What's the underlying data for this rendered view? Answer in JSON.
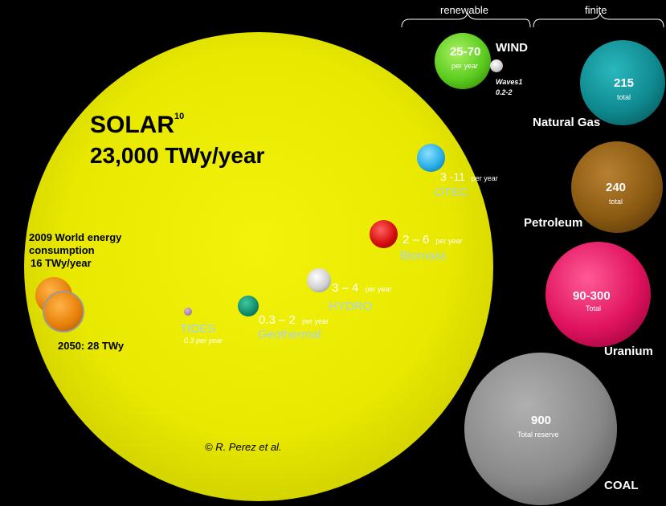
{
  "headers": {
    "renewable": "renewable",
    "finite": "finite"
  },
  "solar": {
    "name": "SOLAR",
    "superscript": "10",
    "value": "23,000 TWy/year",
    "credit": "© R. Perez et al."
  },
  "world_energy": {
    "line1": "2009 World energy",
    "line2": "consumption",
    "line3": "16 TWy/year",
    "future": "2050:  28 TWy"
  },
  "renewables": {
    "wind": {
      "value": "25-70",
      "unit": "per year",
      "name": "WIND"
    },
    "waves": {
      "name": "Waves1",
      "value": "0.2-2"
    },
    "otec": {
      "value": "3 -11",
      "unit": "per year",
      "name": "OTEC"
    },
    "biomass": {
      "value": "2 – 6",
      "unit": "per year",
      "name": "Biomass"
    },
    "hydro": {
      "value": "3 – 4",
      "unit": "per year",
      "name": "HYDRO"
    },
    "geothermal": {
      "value": "0.3 – 2",
      "unit": "per year",
      "name": "Geothermal"
    },
    "tides": {
      "name": "TIDES",
      "value": "0.3 per year"
    }
  },
  "finite": {
    "natural_gas": {
      "value": "215",
      "unit": "total",
      "name": "Natural Gas"
    },
    "petroleum": {
      "value": "240",
      "unit": "total",
      "name": "Petroleum"
    },
    "uranium": {
      "value": "90-300",
      "unit": "Total",
      "name": "Uranium"
    },
    "coal": {
      "value": "900",
      "unit": "Total reserve",
      "name": "COAL"
    }
  },
  "colors": {
    "background": "#000000",
    "solar": "#e6e600",
    "wind": "#5ccc1f",
    "natural_gas": "#0f8a8f",
    "petroleum": "#8a5a12",
    "uranium": "#e0125e",
    "coal": "#8a8a8a",
    "otec": "#2aaee6",
    "biomass": "#d80e0e",
    "geothermal": "#108a6a",
    "world": "#e0820c",
    "label_light_blue": "#a9d4f0"
  }
}
